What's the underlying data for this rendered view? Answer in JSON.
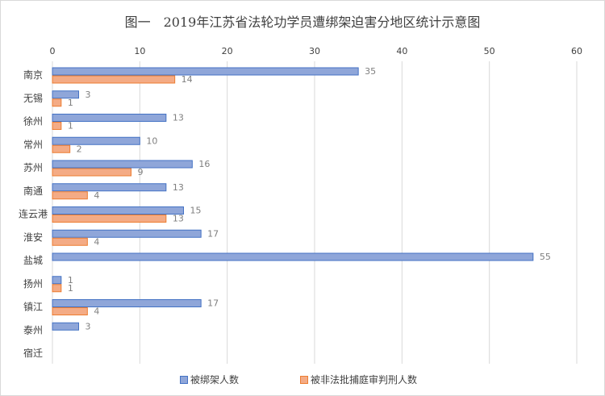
{
  "chart_data": {
    "type": "bar",
    "orientation": "horizontal",
    "title": "图一　2019年江苏省法轮功学员遭绑架迫害分地区统计示意图",
    "categories": [
      "南京",
      "无锡",
      "徐州",
      "常州",
      "苏州",
      "南通",
      "连云港",
      "淮安",
      "盐城",
      "扬州",
      "镇江",
      "泰州",
      "宿迁"
    ],
    "series": [
      {
        "name": "被绑架人数",
        "color": "#8fa6d9",
        "border": "#4472c4",
        "values": [
          35,
          3,
          13,
          10,
          16,
          13,
          15,
          17,
          55,
          1,
          17,
          3,
          null
        ]
      },
      {
        "name": "被非法批捕庭审判刑人数",
        "color": "#f4ab85",
        "border": "#ed7d31",
        "values": [
          14,
          1,
          1,
          2,
          9,
          4,
          13,
          4,
          null,
          1,
          4,
          null,
          null
        ]
      }
    ],
    "xlim": [
      0,
      60
    ],
    "xticks": [
      0,
      10,
      20,
      30,
      40,
      50,
      60
    ],
    "grid": true,
    "axis_position": "top",
    "legend_position": "bottom"
  }
}
